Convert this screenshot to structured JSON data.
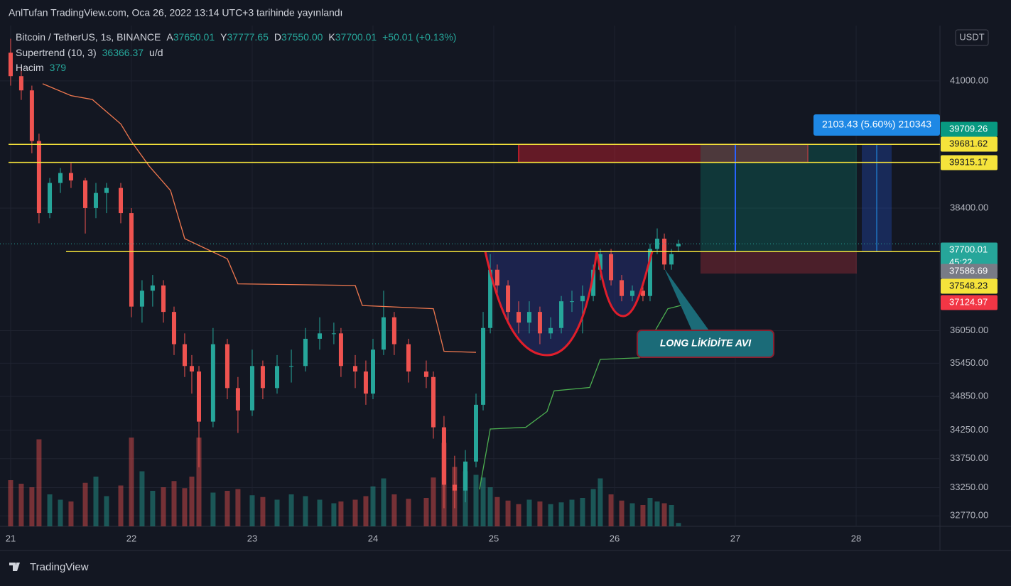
{
  "header": {
    "title": "AnlTufan TradingView.com, Oca 26, 2022 13:14 UTC+3 tarihinde yayınlandı"
  },
  "chart_data": {
    "type": "candlestick",
    "title": "Bitcoin / TetherUS, 1s, BINANCE",
    "ohlc_legend": [
      {
        "key": "A",
        "value": "37650.01"
      },
      {
        "key": "Y",
        "value": "37777.65"
      },
      {
        "key": "D",
        "value": "37550.00"
      },
      {
        "key": "K",
        "value": "37700.01"
      }
    ],
    "change": "+50.01 (+0.13%)",
    "supertrend_legend": {
      "name": "Supertrend (10, 3)",
      "value": "36366.37",
      "unit": "u/d"
    },
    "volume_legend": {
      "name": "Hacim",
      "value": "379"
    },
    "currency": "USDT",
    "x": [
      21.0,
      21.088,
      21.176,
      21.235,
      21.324,
      21.412,
      21.5,
      21.618,
      21.706,
      21.794,
      21.912,
      22.0,
      22.088,
      22.176,
      22.265,
      22.353,
      22.441,
      22.5,
      22.559,
      22.676,
      22.794,
      22.882,
      23.0,
      23.088,
      23.206,
      23.324,
      23.441,
      23.559,
      23.676,
      23.735,
      23.853,
      23.941,
      24.0,
      24.088,
      24.176,
      24.294,
      24.441,
      24.5,
      24.588,
      24.676,
      24.765,
      24.853,
      24.912,
      24.971,
      25.029,
      25.118,
      25.206,
      25.294,
      25.382,
      25.471,
      25.559,
      25.647,
      25.735,
      25.824,
      25.882,
      25.971,
      26.059,
      26.147,
      26.235,
      26.294,
      26.353,
      26.412,
      26.471,
      26.529
    ],
    "open": [
      41600,
      41100,
      40800,
      39750,
      38300,
      38900,
      39100,
      38950,
      38400,
      38700,
      38800,
      38300,
      36500,
      36800,
      36900,
      36400,
      35800,
      35400,
      35300,
      34400,
      35800,
      35000,
      34600,
      35400,
      35000,
      35400,
      35400,
      35900,
      36000,
      36000,
      35400,
      35300,
      34900,
      35700,
      36300,
      35800,
      35300,
      35200,
      34300,
      33300,
      33200,
      33700,
      34700,
      36100,
      37200,
      36900,
      36400,
      36200,
      36400,
      36000,
      36100,
      36600,
      36600,
      36700,
      37200,
      37500,
      37000,
      36700,
      36800,
      36700,
      37600,
      37800,
      37300,
      37650.01
    ],
    "high": [
      41900,
      41300,
      40900,
      39900,
      39000,
      39200,
      39300,
      39000,
      38900,
      38900,
      38900,
      38400,
      37000,
      37100,
      37000,
      36500,
      36000,
      35600,
      35400,
      36100,
      35900,
      35200,
      35700,
      35500,
      35600,
      35700,
      36100,
      36300,
      36200,
      36100,
      35600,
      35500,
      35900,
      36800,
      36400,
      35900,
      35500,
      35300,
      34500,
      33800,
      33900,
      34900,
      36400,
      37500,
      37300,
      37000,
      36600,
      36600,
      36500,
      36300,
      36700,
      36800,
      36900,
      37300,
      37600,
      37600,
      37100,
      36900,
      36900,
      37700,
      38000,
      37900,
      37600,
      37777.65
    ],
    "low": [
      40900,
      40600,
      39500,
      38100,
      38200,
      38700,
      38800,
      37900,
      38200,
      38300,
      38100,
      36300,
      36200,
      36500,
      36200,
      35600,
      35200,
      34900,
      33600,
      34300,
      34800,
      34200,
      34500,
      34800,
      34900,
      35100,
      35300,
      35700,
      35800,
      35200,
      35000,
      34700,
      34800,
      35600,
      35600,
      35100,
      35000,
      34100,
      32900,
      32900,
      33000,
      33600,
      34600,
      36000,
      36700,
      36200,
      36000,
      36000,
      35800,
      35900,
      36000,
      36400,
      36000,
      36600,
      37000,
      36900,
      36600,
      36600,
      36600,
      36600,
      37500,
      37200,
      37200,
      37550
    ],
    "close": [
      41100,
      40800,
      39750,
      38300,
      38900,
      39100,
      38950,
      38400,
      38700,
      38800,
      38300,
      36500,
      36800,
      36900,
      36400,
      35800,
      35400,
      35300,
      34400,
      35800,
      35000,
      34600,
      35400,
      35000,
      35400,
      35400,
      35900,
      36000,
      36000,
      35400,
      35300,
      34900,
      35700,
      36300,
      35800,
      35300,
      35200,
      34300,
      33300,
      33200,
      33700,
      34700,
      36100,
      37200,
      36900,
      36400,
      36200,
      36400,
      36000,
      36100,
      36600,
      36600,
      36700,
      37200,
      37500,
      37000,
      36700,
      36800,
      36700,
      37600,
      37800,
      37300,
      37500,
      37700.01
    ],
    "volume": [
      5200,
      4800,
      4400,
      9800,
      3600,
      3000,
      2800,
      4900,
      5600,
      3400,
      4600,
      10000,
      6200,
      4000,
      4400,
      5100,
      4300,
      5600,
      10000,
      3800,
      4000,
      4200,
      3500,
      3300,
      3000,
      3600,
      3400,
      3000,
      2600,
      2800,
      3000,
      3400,
      4500,
      5400,
      3600,
      3100,
      3200,
      5500,
      9400,
      6700,
      6200,
      5800,
      5500,
      4400,
      3300,
      2900,
      2500,
      3000,
      2800,
      2500,
      2700,
      3000,
      3200,
      4200,
      5400,
      3600,
      2900,
      2600,
      2400,
      3200,
      2800,
      2600,
      2400,
      379
    ],
    "vlim": [
      0,
      12000
    ],
    "colors": {
      "up": "#26a69a",
      "down": "#ef5350",
      "level": "#f5e33b"
    },
    "supertrend": [
      {
        "color": "#f0784f",
        "x": [
          21.265,
          21.5,
          21.676,
          21.912,
          22.0,
          22.147,
          22.324,
          22.441,
          22.794,
          22.882,
          23.853,
          23.912,
          24.5,
          24.588,
          24.853
        ],
        "values": [
          40940,
          40690,
          40610,
          40100,
          39740,
          39240,
          38750,
          37800,
          37410,
          36930,
          36900,
          36520,
          36460,
          35670,
          35650
        ]
      },
      {
        "color": "#4caf50",
        "x": [
          24.882,
          24.971,
          25.265,
          25.441,
          25.5,
          25.794,
          25.882,
          26.206,
          26.441,
          26.547
        ],
        "values": [
          33220,
          34270,
          34300,
          34580,
          34950,
          35010,
          35520,
          35550,
          36460,
          36520
        ]
      }
    ],
    "xlim": [
      20.912,
      28.694
    ],
    "xticks": [
      21,
      22,
      23,
      24,
      25,
      26,
      27,
      28
    ],
    "ylim": [
      32594,
      42185
    ],
    "log": true,
    "grid": true,
    "yticks": [
      {
        "value": 41000,
        "label": "41000.00"
      },
      {
        "value": 38400,
        "label": "38400.00"
      },
      {
        "value": 36050,
        "label": "36050.00"
      },
      {
        "value": 35450,
        "label": "35450.00"
      },
      {
        "value": 34850,
        "label": "34850.00"
      },
      {
        "value": 34250,
        "label": "34250.00"
      },
      {
        "value": 33750,
        "label": "33750.00"
      },
      {
        "value": 33250,
        "label": "33250.00"
      },
      {
        "value": 32770,
        "label": "32770.00"
      }
    ],
    "levels": [
      39681.62,
      39315.17,
      37548.23
    ],
    "price_labels": [
      {
        "value": 39709.26,
        "color": "#089981"
      },
      {
        "value": 39681.62,
        "color": "#f5e33b"
      },
      {
        "value": 39315.17,
        "color": "#f5e33b"
      },
      {
        "value": 37700.01,
        "color": "#26a69a"
      },
      {
        "value": 37586.69,
        "color": "#787b86"
      },
      {
        "value": 37548.23,
        "color": "#f5e33b"
      },
      {
        "value": 37124.97,
        "color": "#f23645"
      }
    ],
    "countdown": "45:22",
    "position_label": "2103.43 (5.60%) 210343",
    "annotation": "LONG LİKİDİTE AVI"
  },
  "footer": {
    "brand": "TradingView"
  }
}
